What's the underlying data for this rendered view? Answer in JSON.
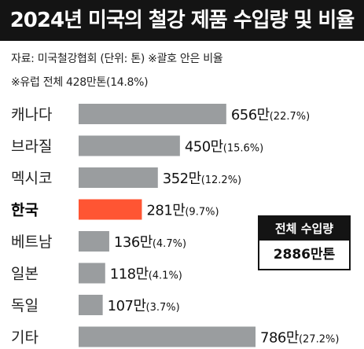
{
  "header": {
    "title": "2024년 미국의 철강 제품 수입량 및 비율",
    "source": "자료: 미국철강협회  (단위: 톤)  ※괄호 안은 비율",
    "note": "※유럽 전체 428만톤(14.8%)"
  },
  "summary_box": {
    "label": "전체 수입량",
    "value": "2886만톤"
  },
  "colors": {
    "bar_default": "#9a9d9f",
    "bar_highlight": "#ff5533",
    "title_bg": "#141414"
  },
  "chart_data": {
    "type": "bar",
    "orientation": "horizontal",
    "unit": "만",
    "categories": [
      "캐나다",
      "브라질",
      "멕시코",
      "한국",
      "베트남",
      "일본",
      "독일",
      "기타"
    ],
    "values": [
      656,
      450,
      352,
      281,
      136,
      118,
      107,
      786
    ],
    "value_labels": [
      "656만",
      "450만",
      "352만",
      "281만",
      "136만",
      "118만",
      "107만",
      "786만"
    ],
    "percent_labels": [
      "(22.7%)",
      "(15.6%)",
      "(12.2%)",
      "(9.7%)",
      "(4.7%)",
      "(4.1%)",
      "(3.7%)",
      "(27.2%)"
    ],
    "percent": [
      22.7,
      15.6,
      12.2,
      9.7,
      4.7,
      4.1,
      3.7,
      27.2
    ],
    "highlight": "한국"
  }
}
